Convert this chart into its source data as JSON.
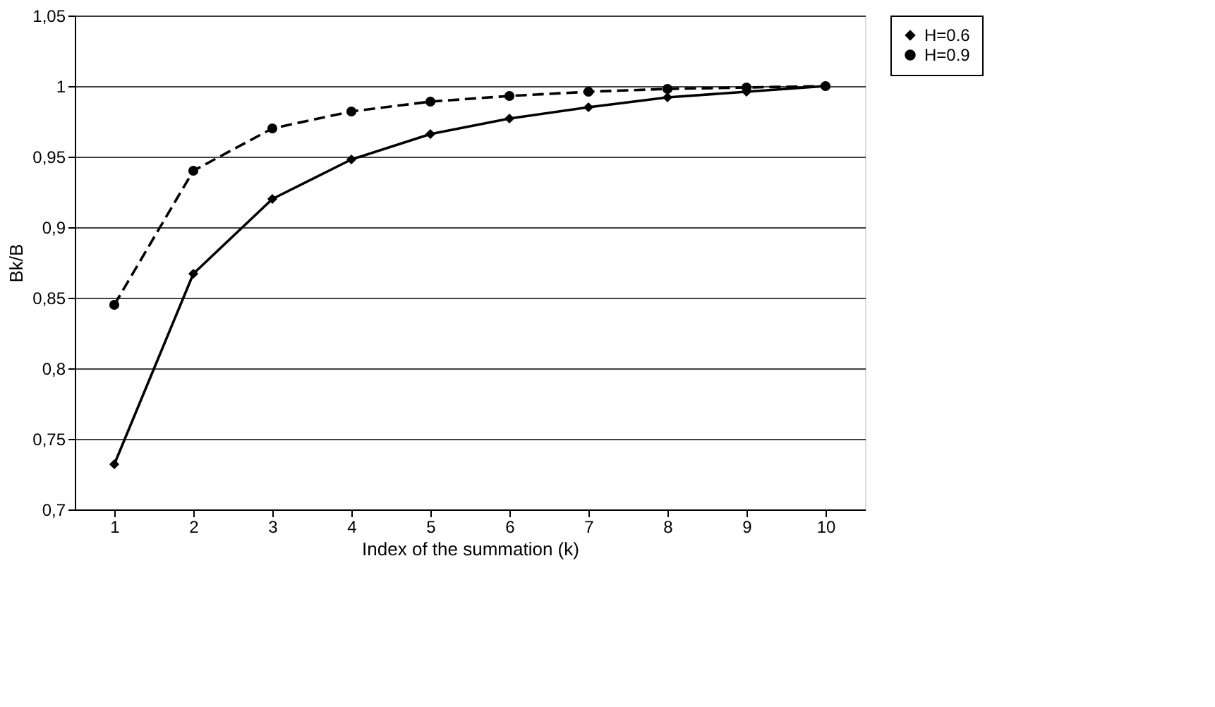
{
  "chart_data": {
    "type": "line",
    "xlabel": "Index of the summation (k)",
    "ylabel": "Bk/B",
    "categories": [
      "1",
      "2",
      "3",
      "4",
      "5",
      "6",
      "7",
      "8",
      "9",
      "10"
    ],
    "series": [
      {
        "name": "H=0.6",
        "color": "#000000",
        "marker": "diamond",
        "line_style": "solid",
        "values": [
          0.732,
          0.867,
          0.92,
          0.948,
          0.966,
          0.977,
          0.985,
          0.992,
          0.996,
          1.0
        ]
      },
      {
        "name": "H=0.9",
        "color": "#000000",
        "marker": "circle",
        "line_style": "dashed",
        "values": [
          0.845,
          0.94,
          0.97,
          0.982,
          0.989,
          0.993,
          0.996,
          0.998,
          0.999,
          1.0
        ]
      }
    ],
    "ylim": [
      0.7,
      1.05
    ],
    "yticks": [
      {
        "value": 0.7,
        "label": "0,7"
      },
      {
        "value": 0.75,
        "label": "0,75"
      },
      {
        "value": 0.8,
        "label": "0,8"
      },
      {
        "value": 0.85,
        "label": "0,85"
      },
      {
        "value": 0.9,
        "label": "0,9"
      },
      {
        "value": 0.95,
        "label": "0,95"
      },
      1,
      {
        "value": 1.05,
        "label": "1,05"
      }
    ],
    "grid": "y",
    "legend": "right"
  }
}
